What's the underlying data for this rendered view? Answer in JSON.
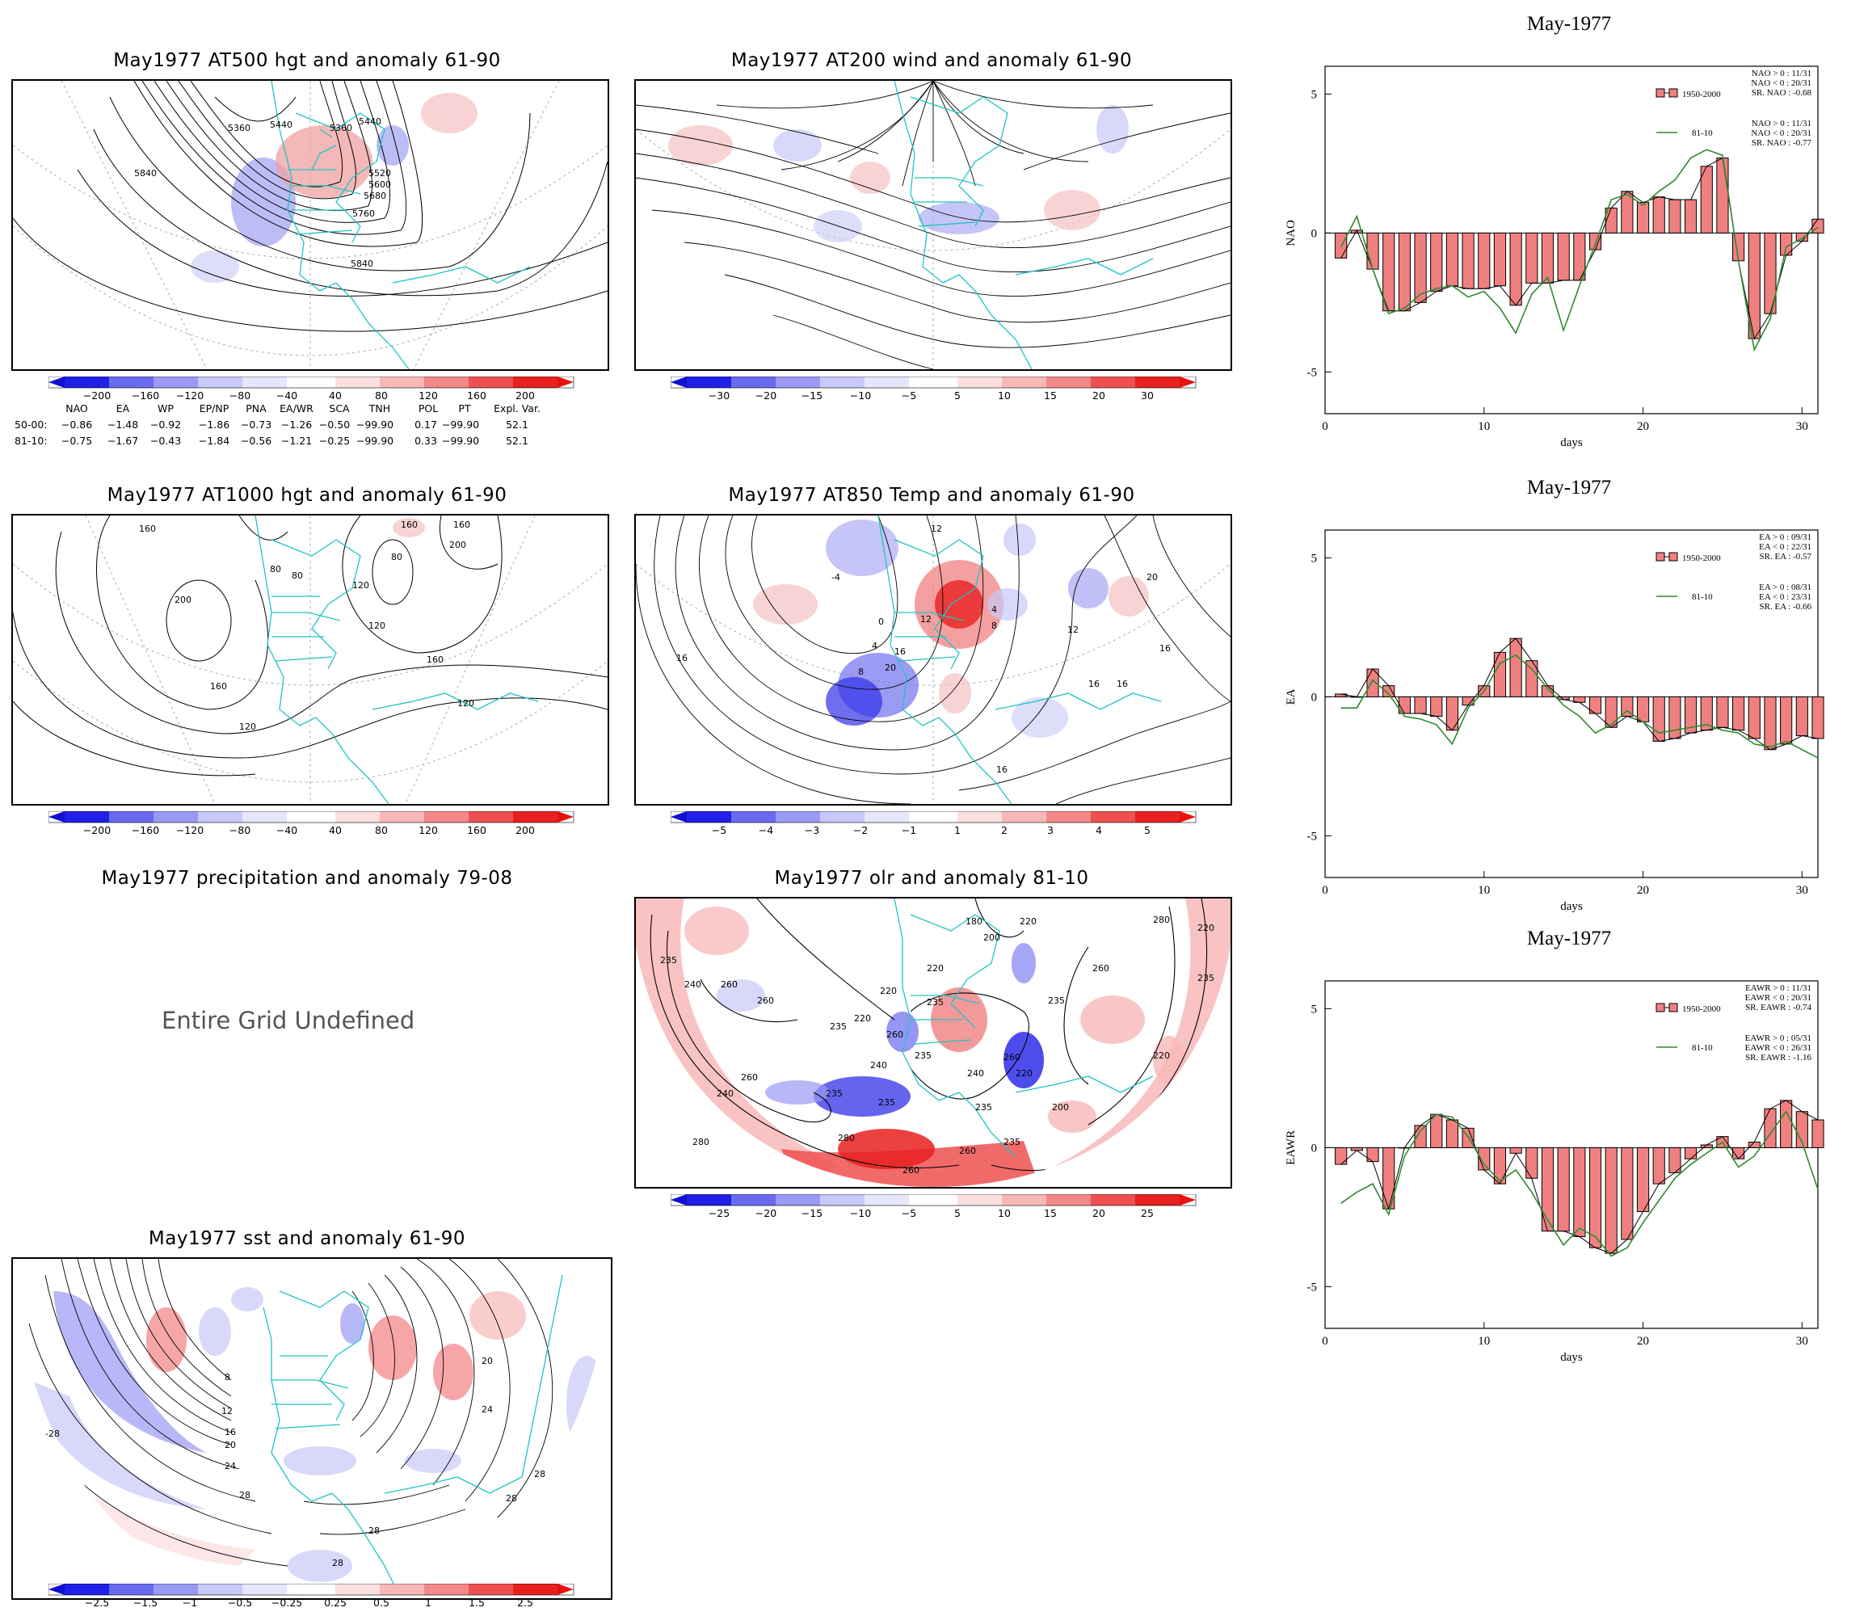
{
  "colors": {
    "bar_fill": "#f08080",
    "bar_stroke": "#000000",
    "line_green": "#2e8b2e",
    "coast": "#20c4c4",
    "contour": "#000000",
    "anom_pos": "#e8202a",
    "anom_neg": "#2030e0"
  },
  "maps": [
    {
      "id": "at500",
      "title": "May1977 AT500 hgt and anomaly 61-90",
      "colorbar": [
        "−200",
        "−160",
        "−120",
        "−80",
        "−40",
        "40",
        "80",
        "120",
        "160",
        "200"
      ],
      "contour_labels": [
        "5360",
        "5440",
        "5360",
        "5440",
        "5520",
        "5600",
        "5680",
        "5760",
        "5840",
        "5840"
      ]
    },
    {
      "id": "at200",
      "title": "May1977 AT200 wind and anomaly 61-90",
      "colorbar": [
        "−30",
        "−20",
        "−15",
        "−10",
        "−5",
        "5",
        "10",
        "15",
        "20",
        "30"
      ],
      "contour_labels": []
    },
    {
      "id": "at1000",
      "title": "May1977 AT1000 hgt and anomaly 61-90",
      "colorbar": [
        "−200",
        "−160",
        "−120",
        "−80",
        "−40",
        "40",
        "80",
        "120",
        "160",
        "200"
      ],
      "contour_labels": [
        "160",
        "200",
        "160",
        "120",
        "80",
        "80",
        "120",
        "160",
        "200",
        "120",
        "160",
        "120",
        "160",
        "80"
      ]
    },
    {
      "id": "at850",
      "title": "May1977 AT850 Temp and anomaly 61-90",
      "colorbar": [
        "−5",
        "−4",
        "−3",
        "−2",
        "−1",
        "1",
        "2",
        "3",
        "4",
        "5"
      ],
      "contour_labels": [
        "12",
        "-4",
        "0",
        "4",
        "8",
        "12",
        "16",
        "20",
        "16",
        "12",
        "16",
        "16",
        "16",
        "20",
        "8",
        "4",
        "16"
      ]
    },
    {
      "id": "precip",
      "title": "May1977 precipitation and anomaly 79-08",
      "undefined_text": "Entire Grid Undefined"
    },
    {
      "id": "olr",
      "title": "May1977 olr and anomaly 81-10",
      "colorbar": [
        "−25",
        "−20",
        "−15",
        "−10",
        "−5",
        "5",
        "10",
        "15",
        "20",
        "25"
      ],
      "contour_labels": [
        "235",
        "240",
        "260",
        "260",
        "220",
        "235",
        "220",
        "235",
        "180",
        "200",
        "220",
        "220",
        "260",
        "235",
        "240",
        "260",
        "235",
        "240",
        "235",
        "260",
        "280",
        "235",
        "240",
        "260",
        "200",
        "220",
        "260",
        "220",
        "235",
        "280",
        "260",
        "280",
        "235",
        "220",
        "235"
      ]
    },
    {
      "id": "sst",
      "title": "May1977 sst and anomaly 61-90",
      "colorbar": [
        "−2.5",
        "−1.5",
        "−1",
        "−0.5",
        "−0.25",
        "0.25",
        "0.5",
        "1",
        "1.5",
        "2.5"
      ],
      "contour_labels": [
        "8",
        "12",
        "16",
        "20",
        "24",
        "28",
        "28",
        "28",
        "24",
        "20",
        "28",
        "-28",
        "28"
      ]
    }
  ],
  "index_table": {
    "headers": [
      "NAO",
      "EA",
      "WP",
      "EP/NP",
      "PNA",
      "EA/WR",
      "SCA",
      "TNH",
      "POL",
      "PT",
      "Expl. Var."
    ],
    "rows": [
      {
        "label": "50-00:",
        "values": [
          "−0.86",
          "−1.48",
          "−0.92",
          "−1.86",
          "−0.73",
          "−1.26",
          "−0.50",
          "−99.90",
          "0.17",
          "−99.90",
          "52.1"
        ]
      },
      {
        "label": "81-10:",
        "values": [
          "−0.75",
          "−1.67",
          "−0.43",
          "−1.84",
          "−0.56",
          "−1.21",
          "−0.25",
          "−99.90",
          "0.33",
          "−99.90",
          "52.1"
        ]
      }
    ]
  },
  "chart_data": [
    {
      "type": "bar",
      "title": "May-1977",
      "xlabel": "days",
      "ylabel": "NAO",
      "xlim": [
        0,
        31
      ],
      "ylim": [
        -6.5,
        6
      ],
      "xticks": [
        0,
        10,
        20,
        30
      ],
      "yticks": [
        5,
        0,
        -5
      ],
      "legend": {
        "position": "top-right",
        "bar_label": "1950-2000",
        "line_label": "81-10",
        "bar_stats": [
          "NAO > 0 : 11/31",
          "NAO < 0 : 20/31",
          "SR. NAO : -0.68"
        ],
        "line_stats": [
          "NAO > 0 : 11/31",
          "NAO < 0 : 20/31",
          "SR. NAO : -0.77"
        ]
      },
      "series": [
        {
          "name": "1950-2000",
          "kind": "bar",
          "x": [
            1,
            2,
            3,
            4,
            5,
            6,
            7,
            8,
            9,
            10,
            11,
            12,
            13,
            14,
            15,
            16,
            17,
            18,
            19,
            20,
            21,
            22,
            23,
            24,
            25,
            26,
            27,
            28,
            29,
            30,
            31
          ],
          "values": [
            -0.9,
            0.1,
            -1.3,
            -2.8,
            -2.8,
            -2.5,
            -2.1,
            -1.9,
            -2.0,
            -2.0,
            -1.9,
            -2.6,
            -1.8,
            -1.8,
            -1.7,
            -1.7,
            -0.6,
            0.9,
            1.5,
            1.1,
            1.3,
            1.2,
            1.2,
            2.4,
            2.7,
            -1.0,
            -3.8,
            -2.9,
            -0.8,
            -0.3,
            0.5
          ]
        },
        {
          "name": "81-10",
          "kind": "line",
          "x": [
            1,
            2,
            3,
            4,
            5,
            6,
            7,
            8,
            9,
            10,
            11,
            12,
            13,
            14,
            15,
            16,
            17,
            18,
            19,
            20,
            21,
            22,
            23,
            24,
            25,
            26,
            27,
            28,
            29,
            30,
            31
          ],
          "values": [
            -0.5,
            0.6,
            -1.3,
            -2.9,
            -2.7,
            -2.2,
            -2.0,
            -1.9,
            -2.3,
            -2.1,
            -2.7,
            -3.6,
            -2.2,
            -1.6,
            -3.5,
            -1.9,
            -0.4,
            1.2,
            1.4,
            1.0,
            1.5,
            1.9,
            2.7,
            3.0,
            2.8,
            -1.0,
            -4.2,
            -3.1,
            -0.5,
            -0.2,
            0.2
          ]
        }
      ]
    },
    {
      "type": "bar",
      "title": "May-1977",
      "xlabel": "days",
      "ylabel": "EA",
      "xlim": [
        0,
        31
      ],
      "ylim": [
        -6.5,
        6
      ],
      "xticks": [
        0,
        10,
        20,
        30
      ],
      "yticks": [
        5,
        0,
        -5
      ],
      "legend": {
        "position": "top-right",
        "bar_label": "1950-2000",
        "line_label": "81-10",
        "bar_stats": [
          "EA > 0 : 09/31",
          "EA < 0 : 22/31",
          "SR. EA : -0.57"
        ],
        "line_stats": [
          "EA > 0 : 08/31",
          "EA < 0 : 23/31",
          "SR. EA : -0.66"
        ]
      },
      "series": [
        {
          "name": "1950-2000",
          "kind": "bar",
          "x": [
            1,
            2,
            3,
            4,
            5,
            6,
            7,
            8,
            9,
            10,
            11,
            12,
            13,
            14,
            15,
            16,
            17,
            18,
            19,
            20,
            21,
            22,
            23,
            24,
            25,
            26,
            27,
            28,
            29,
            30,
            31
          ],
          "values": [
            0.1,
            0.0,
            1.0,
            0.4,
            -0.6,
            -0.6,
            -0.7,
            -1.2,
            -0.3,
            0.4,
            1.6,
            2.1,
            1.3,
            0.4,
            -0.1,
            -0.2,
            -0.6,
            -1.1,
            -0.7,
            -0.9,
            -1.6,
            -1.5,
            -1.3,
            -1.2,
            -1.1,
            -1.2,
            -1.5,
            -1.9,
            -1.7,
            -1.4,
            -1.5
          ]
        },
        {
          "name": "81-10",
          "kind": "line",
          "x": [
            1,
            2,
            3,
            4,
            5,
            6,
            7,
            8,
            9,
            10,
            11,
            12,
            13,
            14,
            15,
            16,
            17,
            18,
            19,
            20,
            21,
            22,
            23,
            24,
            25,
            26,
            27,
            28,
            29,
            30,
            31
          ],
          "values": [
            -0.4,
            -0.4,
            0.6,
            0.1,
            -0.7,
            -0.8,
            -1.0,
            -1.7,
            -0.4,
            0.2,
            1.2,
            1.5,
            1.0,
            0.3,
            -0.3,
            -0.7,
            -1.3,
            -1.0,
            -0.5,
            -0.9,
            -1.3,
            -1.2,
            -1.1,
            -1.0,
            -1.2,
            -1.3,
            -1.7,
            -1.8,
            -1.6,
            -1.9,
            -2.2
          ]
        }
      ]
    },
    {
      "type": "bar",
      "title": "May-1977",
      "xlabel": "days",
      "ylabel": "EAWR",
      "xlim": [
        0,
        31
      ],
      "ylim": [
        -6.5,
        6
      ],
      "xticks": [
        0,
        10,
        20,
        30
      ],
      "yticks": [
        5,
        0,
        -5
      ],
      "legend": {
        "position": "top-right",
        "bar_label": "1950-2000",
        "line_label": "81-10",
        "bar_stats": [
          "EAWR > 0 : 11/31",
          "EAWR < 0 : 20/31",
          "SR. EAWR : -0.74"
        ],
        "line_stats": [
          "EAWR > 0 : 05/31",
          "EAWR < 0 : 26/31",
          "SR. EAWR : -1.16"
        ]
      },
      "series": [
        {
          "name": "1950-2000",
          "kind": "bar",
          "x": [
            1,
            2,
            3,
            4,
            5,
            6,
            7,
            8,
            9,
            10,
            11,
            12,
            13,
            14,
            15,
            16,
            17,
            18,
            19,
            20,
            21,
            22,
            23,
            24,
            25,
            26,
            27,
            28,
            29,
            30,
            31
          ],
          "values": [
            -0.6,
            -0.1,
            -0.5,
            -2.2,
            0.0,
            0.8,
            1.2,
            1.0,
            0.7,
            -0.8,
            -1.3,
            -0.2,
            -1.1,
            -3.0,
            -3.0,
            -3.2,
            -3.6,
            -3.8,
            -3.3,
            -2.3,
            -1.3,
            -0.9,
            -0.4,
            0.1,
            0.4,
            -0.4,
            0.2,
            1.4,
            1.7,
            1.3,
            1.0
          ]
        },
        {
          "name": "81-10",
          "kind": "line",
          "x": [
            1,
            2,
            3,
            4,
            5,
            6,
            7,
            8,
            9,
            10,
            11,
            12,
            13,
            14,
            15,
            16,
            17,
            18,
            19,
            20,
            21,
            22,
            23,
            24,
            25,
            26,
            27,
            28,
            29,
            30,
            31
          ],
          "values": [
            -2.0,
            -1.6,
            -1.3,
            -2.4,
            -0.3,
            0.6,
            1.2,
            1.1,
            0.4,
            -0.6,
            -1.2,
            -0.8,
            -1.6,
            -2.6,
            -3.5,
            -2.9,
            -3.2,
            -3.9,
            -3.6,
            -2.7,
            -1.9,
            -1.1,
            -0.6,
            -0.2,
            0.2,
            -0.7,
            -0.3,
            0.5,
            1.3,
            0.2,
            -1.5
          ]
        }
      ]
    }
  ]
}
